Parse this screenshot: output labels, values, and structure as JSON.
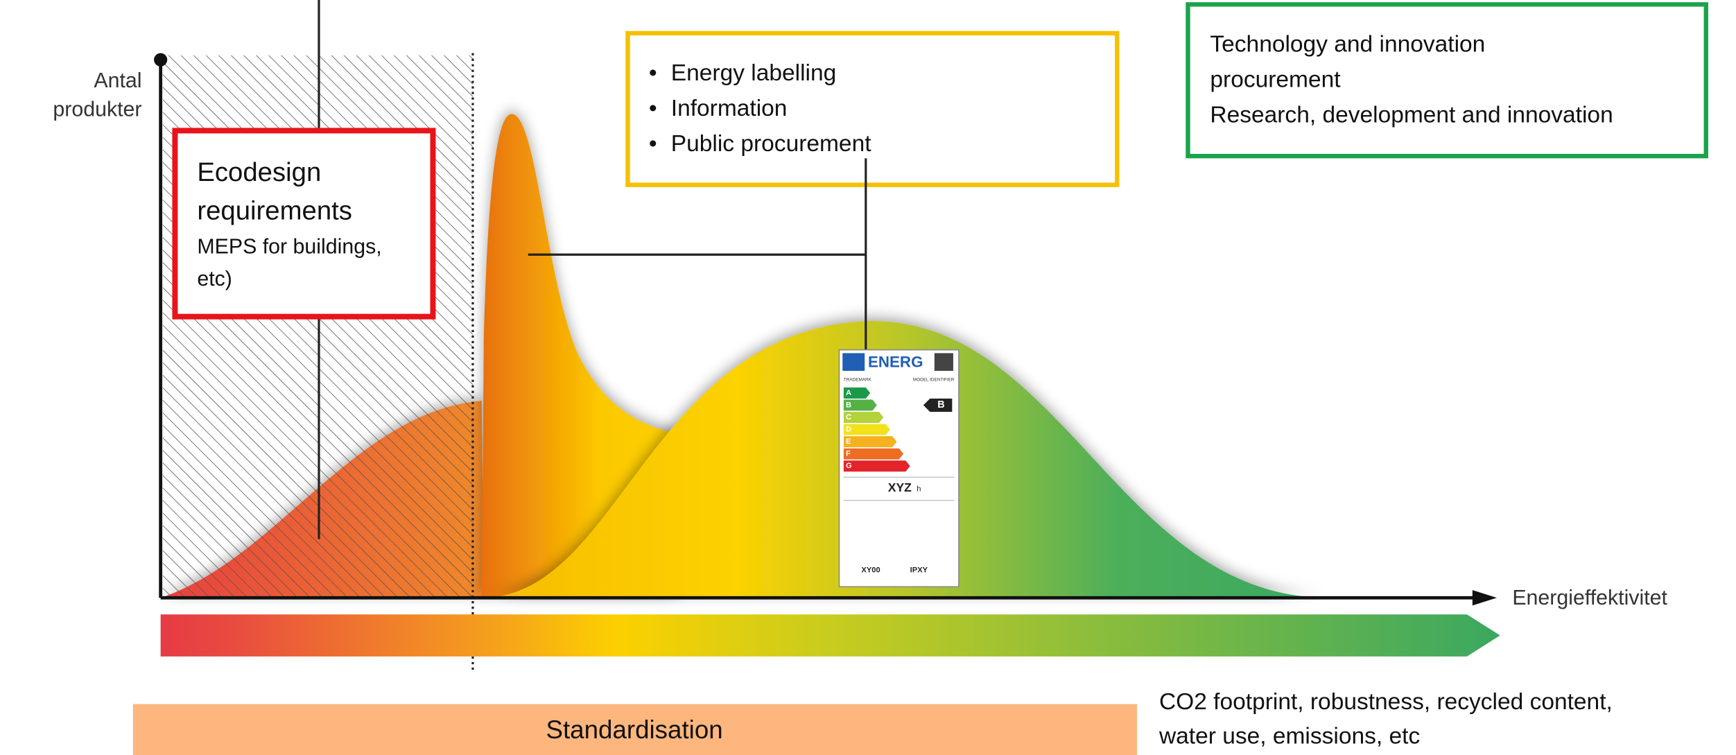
{
  "axes": {
    "y_label": [
      "Antal",
      "produkter"
    ],
    "x_label": "Energieffektivitet"
  },
  "ecodesign": {
    "title": [
      "Ecodesign",
      "requirements"
    ],
    "detail": [
      "MEPS for buildings,",
      "etc)"
    ]
  },
  "labelling": {
    "items": [
      "Energy labelling",
      "Information",
      "Public procurement"
    ]
  },
  "innovation": {
    "lines": [
      "Technology and innovation",
      "procurement",
      "Research, development and innovation"
    ]
  },
  "standardisation": "Standardisation",
  "other_criteria": [
    "CO2 footprint, robustness, recycled content,",
    "water use, emissions, etc"
  ],
  "energy_label": {
    "brand": "ENERG",
    "trademark": "TRADEMARK",
    "model": "MODEL IDENTIFIER",
    "classes": [
      "A",
      "B",
      "C",
      "D",
      "E",
      "F",
      "G"
    ],
    "rating": "B",
    "consumption": "XYZ",
    "unit": "h",
    "noise": "XY00",
    "protection": "IPXY"
  }
}
